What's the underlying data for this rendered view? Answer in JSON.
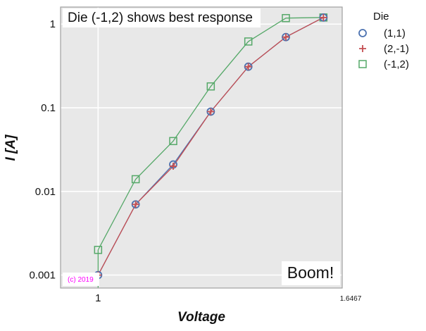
{
  "chart_data": {
    "type": "line",
    "title": "Die (-1,2) shows best response",
    "xlabel": "Voltage",
    "ylabel": "I [A]",
    "x_scale": "linear",
    "y_scale": "log",
    "xlim": [
      0.9,
      1.65
    ],
    "ylim": [
      0.0007,
      1.6
    ],
    "x_ticks": [
      {
        "value": 1,
        "label": "1"
      }
    ],
    "x_corner_label": "1.6467",
    "y_ticks": [
      {
        "value": 1,
        "label": "1"
      },
      {
        "value": 0.1,
        "label": "0.1"
      },
      {
        "value": 0.01,
        "label": "0.01"
      },
      {
        "value": 0.001,
        "label": "0.001"
      }
    ],
    "grid": true,
    "legend": {
      "title": "Die",
      "placement": "outside right"
    },
    "series": [
      {
        "name": "(1,1)",
        "marker": "circle",
        "color": "#4c72b0",
        "x": [
          1.0,
          1.1,
          1.2,
          1.3,
          1.4,
          1.5,
          1.6
        ],
        "y": [
          0.001,
          0.007,
          0.021,
          0.09,
          0.31,
          0.7,
          1.2
        ]
      },
      {
        "name": "(2,-1)",
        "marker": "plus",
        "color": "#c44e52",
        "x": [
          1.0,
          1.1,
          1.2,
          1.3,
          1.4,
          1.5,
          1.6
        ],
        "y": [
          0.001,
          0.007,
          0.02,
          0.09,
          0.31,
          0.7,
          1.2
        ]
      },
      {
        "name": "(-1,2)",
        "marker": "square",
        "color": "#55a868",
        "x": [
          1.0,
          1.1,
          1.2,
          1.3,
          1.4,
          1.5,
          1.6
        ],
        "y": [
          0.002,
          0.014,
          0.04,
          0.18,
          0.62,
          1.18,
          1.2
        ]
      }
    ],
    "annotations": [
      {
        "text": "Boom!",
        "placement": "bottom-right"
      },
      {
        "text": "(c) 2019",
        "placement": "bottom-left",
        "color": "#ff00ff"
      }
    ],
    "colors": {
      "background": "#e8e8e8",
      "grid": "#ffffff",
      "frame": "#a0a0a0"
    }
  }
}
